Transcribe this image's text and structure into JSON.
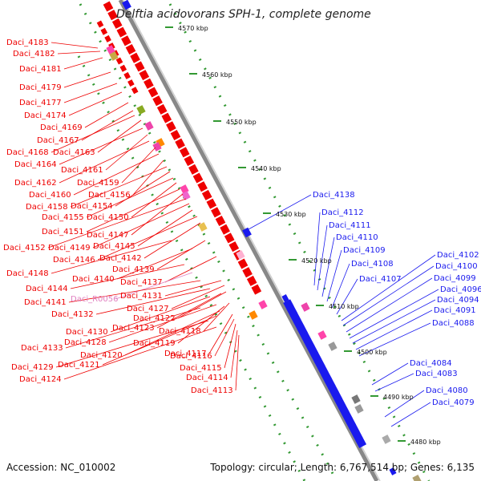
{
  "title": "Delftia acidovorans SPH-1, complete genome",
  "footer": {
    "accession": "Accession: NC_010002",
    "topology": "Topology: circular; Length: 6,767,514 bp; Genes: 6,135"
  },
  "colors": {
    "reverse_gene": "#ee0000",
    "forward_gene": "#1a1aee",
    "rna_label": "#e080c0",
    "backbone": "#888888",
    "tick": "#339933"
  },
  "ticks": [
    "4570 kbp",
    "4560 kbp",
    "4550 kbp",
    "4540 kbp",
    "4530 kbp",
    "4520 kbp",
    "4510 kbp",
    "4500 kbp",
    "4490 kbp",
    "4480 kbp"
  ],
  "left_labels": [
    "Daci_4183",
    "Daci_4182",
    "Daci_4181",
    "Daci_4179",
    "Daci_4177",
    "Daci_4174",
    "Daci_4169",
    "Daci_4167",
    "Daci_4168",
    "Daci_4163",
    "Daci_4164",
    "Daci_4161",
    "Daci_4162",
    "Daci_4159",
    "Daci_4160",
    "Daci_4156",
    "Daci_4158",
    "Daci_4154",
    "Daci_4155",
    "Daci_4150",
    "Daci_4151",
    "Daci_4147",
    "Daci_4152",
    "Daci_4149",
    "Daci_4145",
    "Daci_4146",
    "Daci_4142",
    "Daci_4148",
    "Daci_4139",
    "Daci_4140",
    "Daci_4137",
    "Daci_4144",
    "Daci_R0056",
    "Daci_4131",
    "Daci_4141",
    "Daci_4127",
    "Daci_4132",
    "Daci_4122",
    "Daci_4123",
    "Daci_4130",
    "Daci_4118",
    "Daci_4128",
    "Daci_4119",
    "Daci_4133",
    "Daci_4120",
    "Daci_4117",
    "Daci_4121",
    "Daci_4116",
    "Daci_4129",
    "Daci_4115",
    "Daci_4124",
    "Daci_4114",
    "Daci_4113"
  ],
  "right_labels": [
    "Daci_4138",
    "Daci_4112",
    "Daci_4111",
    "Daci_4110",
    "Daci_4109",
    "Daci_4108",
    "Daci_4107",
    "Daci_4102",
    "Daci_4100",
    "Daci_4099",
    "Daci_4096",
    "Daci_4094",
    "Daci_4091",
    "Daci_4088",
    "Daci_4084",
    "Daci_4083",
    "Daci_4080",
    "Daci_4079"
  ]
}
